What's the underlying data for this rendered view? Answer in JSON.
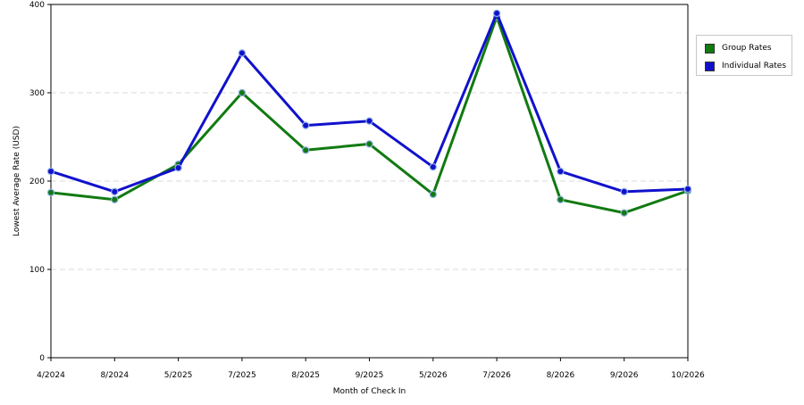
{
  "chart_data": {
    "type": "line",
    "title": "",
    "xlabel": "Month of Check In",
    "ylabel": "Lowest Average Rate (USD)",
    "categories": [
      "4/2024",
      "8/2024",
      "5/2025",
      "7/2025",
      "8/2025",
      "9/2025",
      "5/2026",
      "7/2026",
      "8/2026",
      "9/2026",
      "10/2026"
    ],
    "ylim": [
      0,
      400
    ],
    "yticks": [
      0,
      100,
      200,
      300,
      400
    ],
    "grid": true,
    "legend_position": "right",
    "series": [
      {
        "name": "Group Rates",
        "color": "#117a11",
        "values": [
          187,
          179,
          219,
          300,
          235,
          242,
          185,
          386,
          179,
          164,
          189
        ]
      },
      {
        "name": "Individual Rates",
        "color": "#1111cc",
        "values": [
          211,
          188,
          215,
          345,
          263,
          268,
          216,
          390,
          211,
          188,
          191
        ]
      }
    ]
  }
}
